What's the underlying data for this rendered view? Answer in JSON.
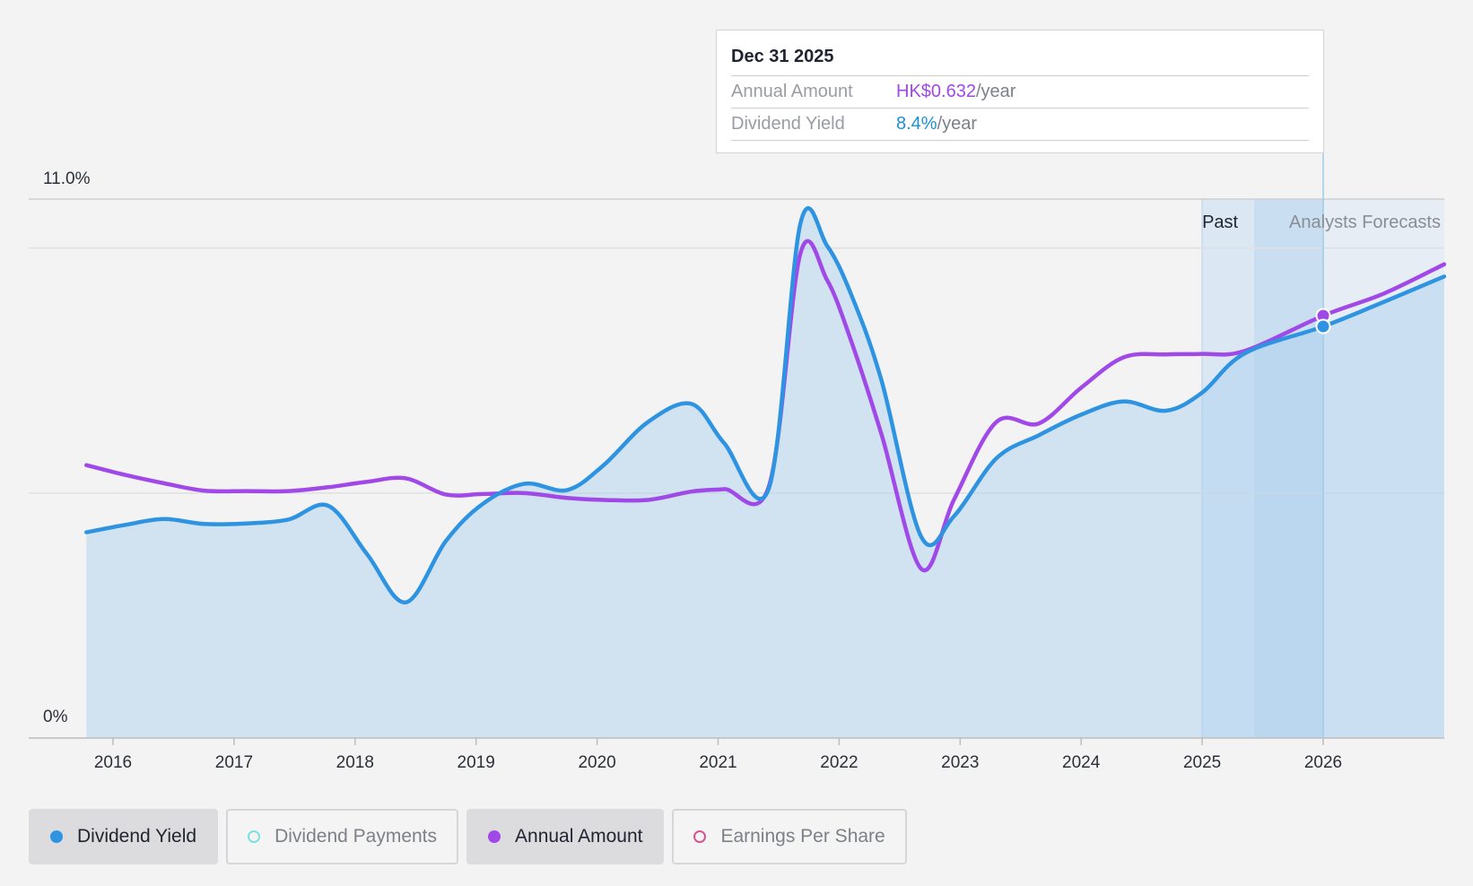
{
  "chart_data": {
    "type": "line",
    "x_ticks": [
      2016,
      2017,
      2018,
      2019,
      2020,
      2021,
      2022,
      2023,
      2024,
      2025,
      2026
    ],
    "y_axis": {
      "top_label": "11.0%",
      "bottom_label": "0%",
      "ylim": [
        0,
        11
      ]
    },
    "region_labels": {
      "past": "Past",
      "forecast": "Analysts Forecasts"
    },
    "series": [
      {
        "name": "Dividend Yield",
        "color": "#2e94e2",
        "area": true,
        "points": [
          [
            2015.78,
            4.2
          ],
          [
            2016.1,
            4.35
          ],
          [
            2016.42,
            4.47
          ],
          [
            2016.75,
            4.37
          ],
          [
            2017.1,
            4.38
          ],
          [
            2017.45,
            4.46
          ],
          [
            2017.78,
            4.74
          ],
          [
            2018.1,
            3.75
          ],
          [
            2018.42,
            2.77
          ],
          [
            2018.75,
            4.02
          ],
          [
            2019.05,
            4.77
          ],
          [
            2019.4,
            5.19
          ],
          [
            2019.75,
            5.06
          ],
          [
            2020.05,
            5.56
          ],
          [
            2020.42,
            6.45
          ],
          [
            2020.78,
            6.82
          ],
          [
            2021.05,
            6.02
          ],
          [
            2021.42,
            5.1
          ],
          [
            2021.68,
            10.5
          ],
          [
            2021.9,
            10.05
          ],
          [
            2022.1,
            9.05
          ],
          [
            2022.35,
            7.3
          ],
          [
            2022.68,
            4.1
          ],
          [
            2022.95,
            4.53
          ],
          [
            2023.3,
            5.71
          ],
          [
            2023.65,
            6.18
          ],
          [
            2024.0,
            6.6
          ],
          [
            2024.35,
            6.87
          ],
          [
            2024.7,
            6.68
          ],
          [
            2025.0,
            7.05
          ],
          [
            2025.35,
            7.85
          ],
          [
            2026.0,
            8.4
          ],
          [
            2026.5,
            8.9
          ],
          [
            2027.0,
            9.42
          ]
        ]
      },
      {
        "name": "Annual Amount",
        "color": "#a148e8",
        "area": false,
        "points": [
          [
            2015.78,
            5.57
          ],
          [
            2016.1,
            5.37
          ],
          [
            2016.42,
            5.2
          ],
          [
            2016.75,
            5.05
          ],
          [
            2017.1,
            5.04
          ],
          [
            2017.45,
            5.04
          ],
          [
            2017.78,
            5.12
          ],
          [
            2018.1,
            5.23
          ],
          [
            2018.42,
            5.3
          ],
          [
            2018.75,
            4.97
          ],
          [
            2019.05,
            4.98
          ],
          [
            2019.4,
            5.0
          ],
          [
            2019.75,
            4.9
          ],
          [
            2020.05,
            4.86
          ],
          [
            2020.42,
            4.86
          ],
          [
            2020.78,
            5.03
          ],
          [
            2021.05,
            5.08
          ],
          [
            2021.42,
            5.14
          ],
          [
            2021.68,
            9.89
          ],
          [
            2021.9,
            9.35
          ],
          [
            2022.1,
            8.1
          ],
          [
            2022.35,
            6.2
          ],
          [
            2022.68,
            3.45
          ],
          [
            2022.95,
            4.87
          ],
          [
            2023.3,
            6.45
          ],
          [
            2023.65,
            6.42
          ],
          [
            2024.0,
            7.15
          ],
          [
            2024.35,
            7.77
          ],
          [
            2024.7,
            7.83
          ],
          [
            2025.0,
            7.84
          ],
          [
            2025.35,
            7.9
          ],
          [
            2026.0,
            8.62
          ],
          [
            2026.5,
            9.07
          ],
          [
            2027.0,
            9.67
          ]
        ]
      }
    ],
    "tooltip": {
      "date": "Dec 31 2025",
      "x": 2026.0,
      "rows": [
        {
          "label": "Annual Amount",
          "value": "HK$0.632",
          "unit": "/year",
          "color": "#a148e8"
        },
        {
          "label": "Dividend Yield",
          "value": "8.4%",
          "unit": "/year",
          "color": "#1e8fd5"
        }
      ]
    }
  },
  "legend": [
    {
      "label": "Dividend Yield",
      "color": "#2e94e2",
      "active": true
    },
    {
      "label": "Dividend Payments",
      "color": "#7ee0da",
      "active": false
    },
    {
      "label": "Annual Amount",
      "color": "#a148e8",
      "active": true
    },
    {
      "label": "Earnings Per Share",
      "color": "#d6558f",
      "active": false
    }
  ]
}
